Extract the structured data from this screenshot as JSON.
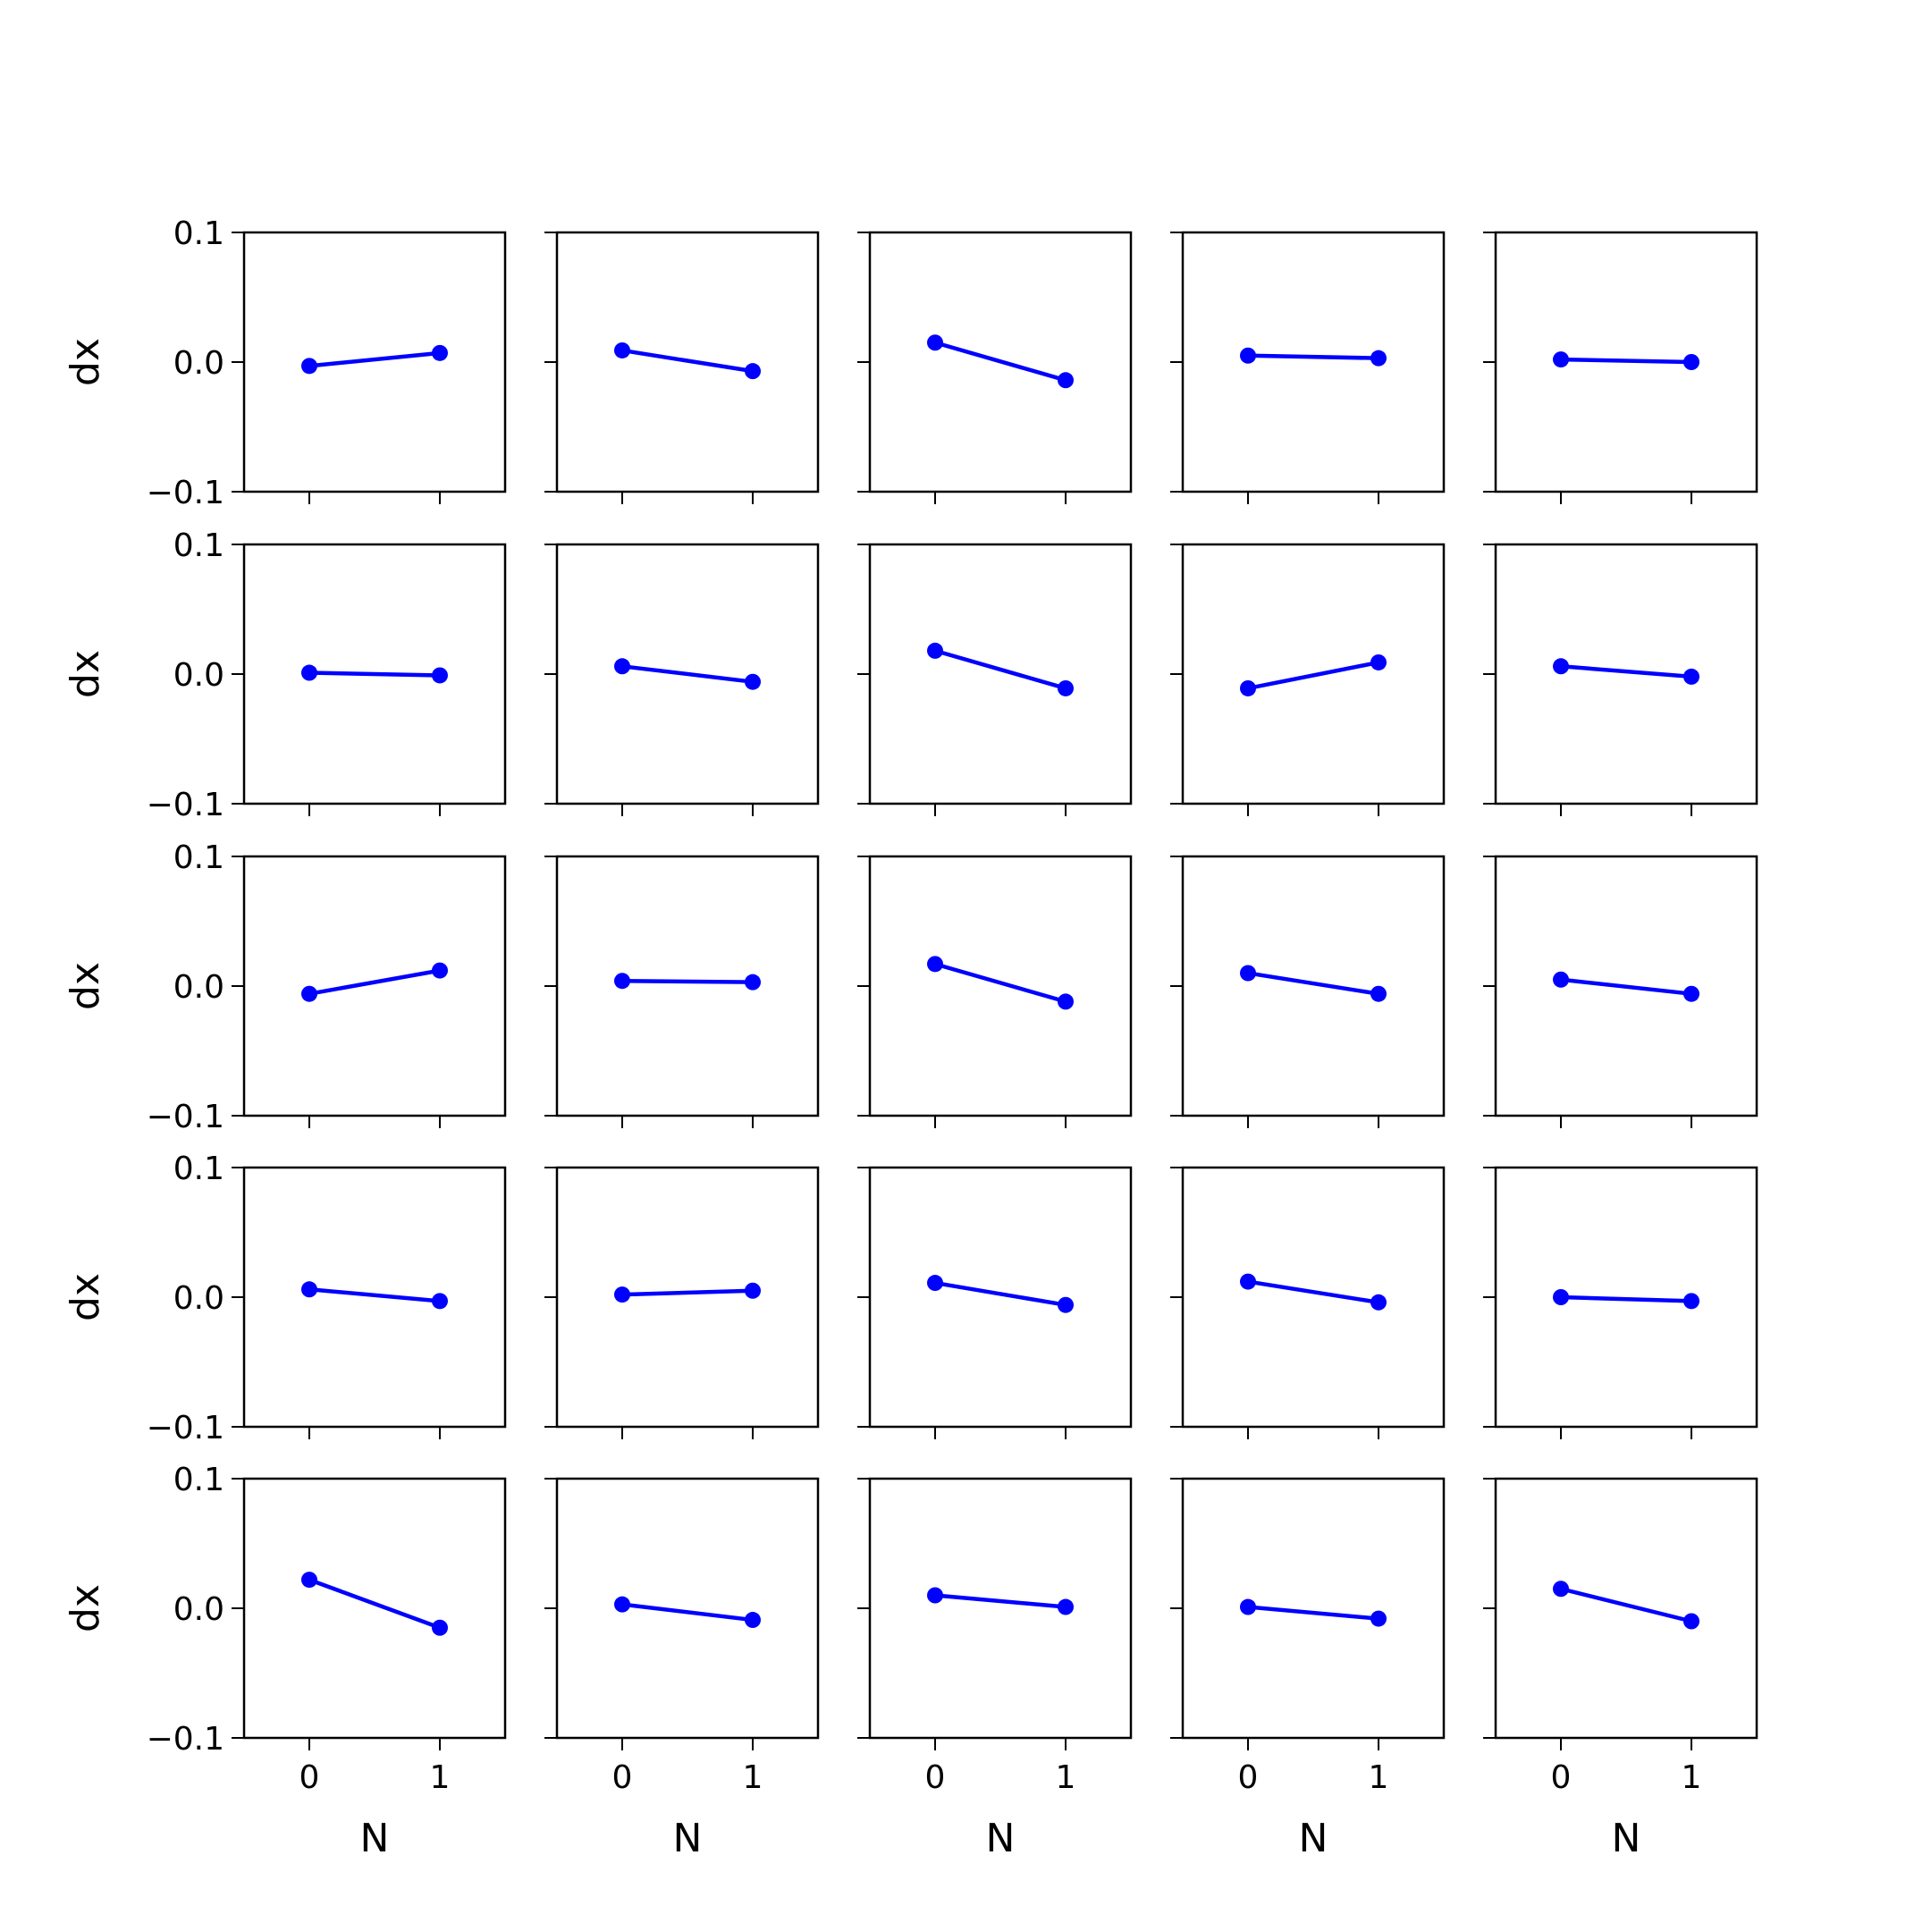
{
  "chart_data": {
    "type": "line",
    "layout": {
      "rows": 5,
      "cols": 5,
      "sharex": true,
      "sharey": true
    },
    "x": [
      0,
      1
    ],
    "xticks": [
      0,
      1
    ],
    "xlim": [
      -0.5,
      1.5
    ],
    "ylim": [
      -0.1,
      0.1
    ],
    "yticks": [
      0.1,
      0.0,
      -0.1
    ],
    "ytick_labels": [
      "0.1",
      "0.0",
      "−0.1"
    ],
    "xlabel": "N",
    "ylabel": "dx",
    "color": "#0000ff",
    "marker": "circle",
    "grid": false,
    "panels": [
      [
        [
          -0.003,
          0.007
        ],
        [
          0.009,
          -0.007
        ],
        [
          0.015,
          -0.014
        ],
        [
          0.005,
          0.003
        ],
        [
          0.002,
          0.0
        ]
      ],
      [
        [
          0.001,
          -0.001
        ],
        [
          0.006,
          -0.006
        ],
        [
          0.018,
          -0.011
        ],
        [
          -0.011,
          0.009
        ],
        [
          0.006,
          -0.002
        ]
      ],
      [
        [
          -0.006,
          0.012
        ],
        [
          0.004,
          0.003
        ],
        [
          0.017,
          -0.012
        ],
        [
          0.01,
          -0.006
        ],
        [
          0.005,
          -0.006
        ]
      ],
      [
        [
          0.006,
          -0.003
        ],
        [
          0.002,
          0.005
        ],
        [
          0.011,
          -0.006
        ],
        [
          0.012,
          -0.004
        ],
        [
          0.0,
          -0.003
        ]
      ],
      [
        [
          0.022,
          -0.015
        ],
        [
          0.003,
          -0.009
        ],
        [
          0.01,
          0.001
        ],
        [
          0.001,
          -0.008
        ],
        [
          0.015,
          -0.01
        ]
      ]
    ]
  }
}
